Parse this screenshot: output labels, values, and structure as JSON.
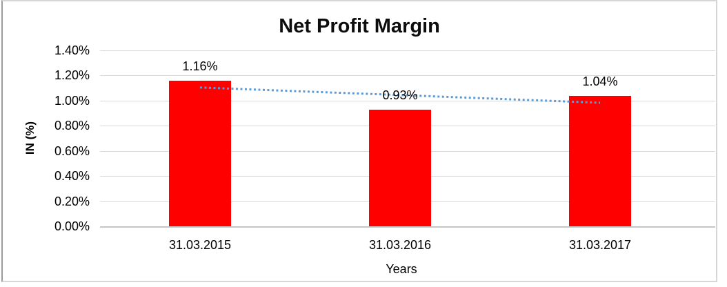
{
  "chart_data": {
    "type": "bar",
    "title": "Net Profit Margin",
    "xlabel": "Years",
    "ylabel": "IN (%)",
    "categories": [
      "31.03.2015",
      "31.03.2016",
      "31.03.2017"
    ],
    "values": [
      1.16,
      0.93,
      1.04
    ],
    "data_labels": [
      "1.16%",
      "0.93%",
      "1.04%"
    ],
    "unit": "%",
    "ylim": [
      0,
      1.4
    ],
    "ytick_step": 0.2,
    "ytick_labels": [
      "0.00%",
      "0.20%",
      "0.40%",
      "0.60%",
      "0.80%",
      "1.00%",
      "1.20%",
      "1.40%"
    ],
    "grid": true,
    "legend": "none",
    "bar_color": "#ff0000",
    "trendline": {
      "type": "linear",
      "style": "dotted",
      "color": "#5b9bd5",
      "endpoint_values": [
        1.105,
        0.983
      ]
    }
  }
}
